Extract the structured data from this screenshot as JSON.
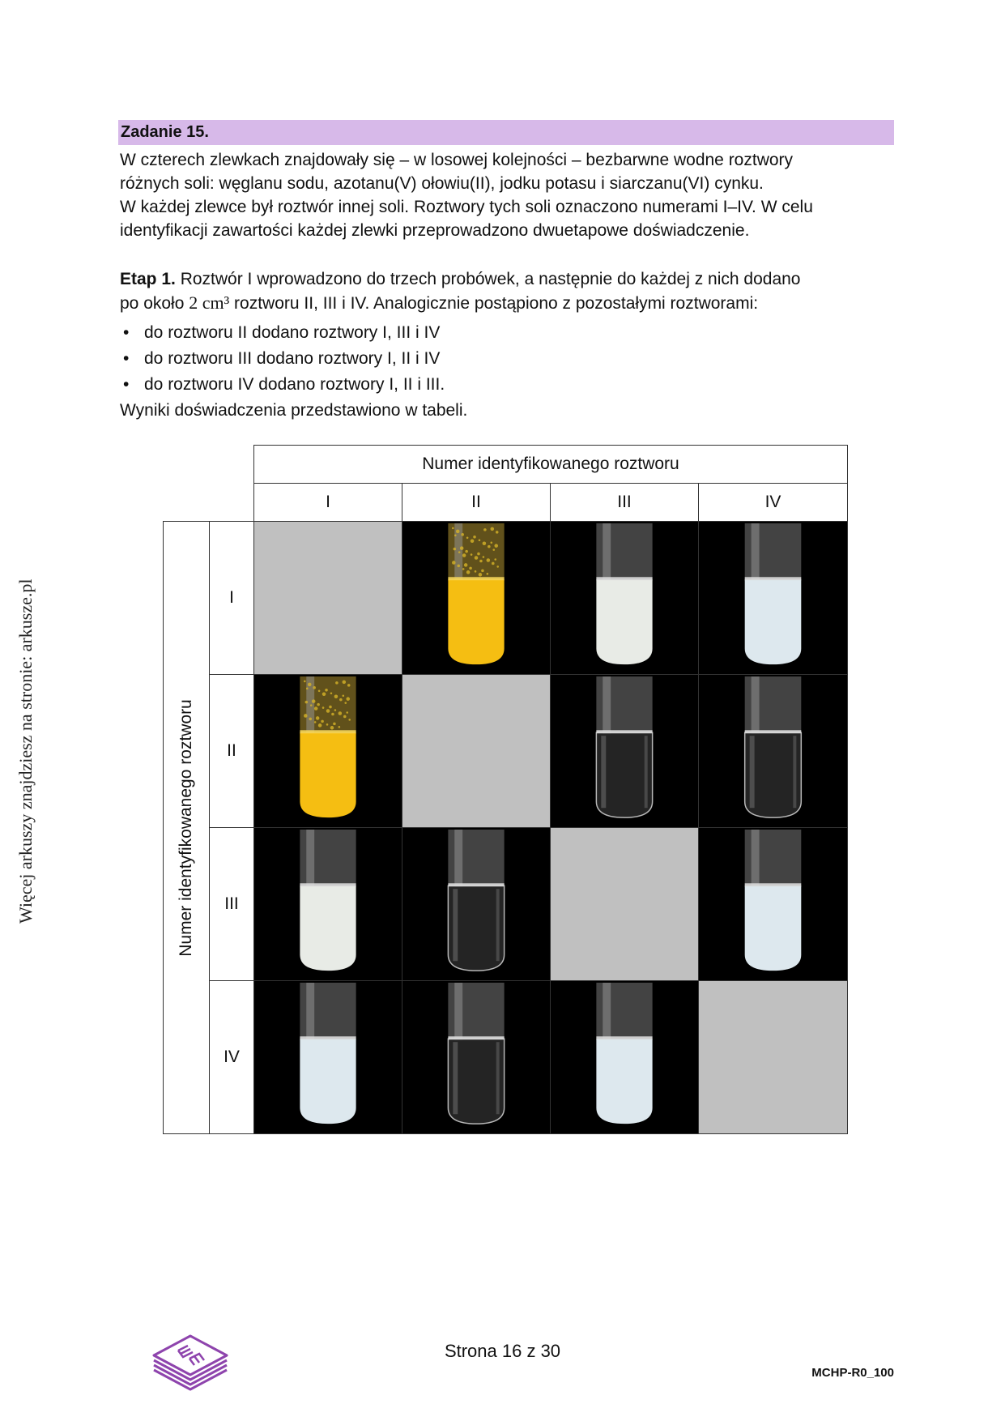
{
  "side_note": "Więcej arkuszy znajdziesz na stronie: arkusze.pl",
  "task": {
    "title": "Zadanie 15.",
    "intro_lines": [
      "W czterech zlewkach znajdowały się – w losowej kolejności – bezbarwne wodne roztwory",
      "różnych soli: węglanu sodu, azotanu(V) ołowiu(II), jodku potasu i siarczanu(VI) cynku.",
      "W każdej zlewce był roztwór innej soli. Roztwory tych soli oznaczono numerami I–IV. W celu",
      "identyfikacji zawartości każdej zlewki przeprowadzono dwuetapowe doświadczenie."
    ],
    "etap_label": "Etap 1.",
    "etap_line1": " Roztwór I wprowadzono do trzech probówek, a następnie do każdej z nich dodano",
    "etap_line2_pre": "po około ",
    "etap_volume": "2 cm³",
    "etap_line2_post": " roztworu II, III i IV. Analogicznie postąpiono z pozostałymi roztworami:",
    "bullets": [
      "do roztworu II dodano roztwory I, III i IV",
      "do roztworu III dodano roztwory I, II i IV",
      "do roztworu IV dodano roztwory I, II i III."
    ],
    "results_note": "Wyniki doświadczenia przedstawiono w tabeli."
  },
  "table": {
    "column_header": "Numer identyfikowanego roztworu",
    "row_header": "Numer identyfikowanego roztworu",
    "columns": [
      "I",
      "II",
      "III",
      "IV"
    ],
    "rows": [
      "I",
      "II",
      "III",
      "IV"
    ],
    "cells": [
      [
        "empty",
        "yellow",
        "white",
        "bluewhite"
      ],
      [
        "yellow",
        "empty",
        "clear",
        "clear"
      ],
      [
        "white",
        "clear",
        "empty",
        "bluewhite"
      ],
      [
        "bluewhite",
        "clear",
        "bluewhite",
        "empty"
      ]
    ]
  },
  "footer": {
    "page": "Strona 16 z 30",
    "code": "MCHP-R0_100",
    "logo": "cke-em-logo"
  },
  "colors": {
    "header_bar": "#d7b9e9",
    "yellow_precipitate": "#f5be12",
    "white_precipitate": "#e8ebe6",
    "bluewhite_precipitate": "#dde8ee",
    "empty_cell": "#c0c0c0"
  }
}
